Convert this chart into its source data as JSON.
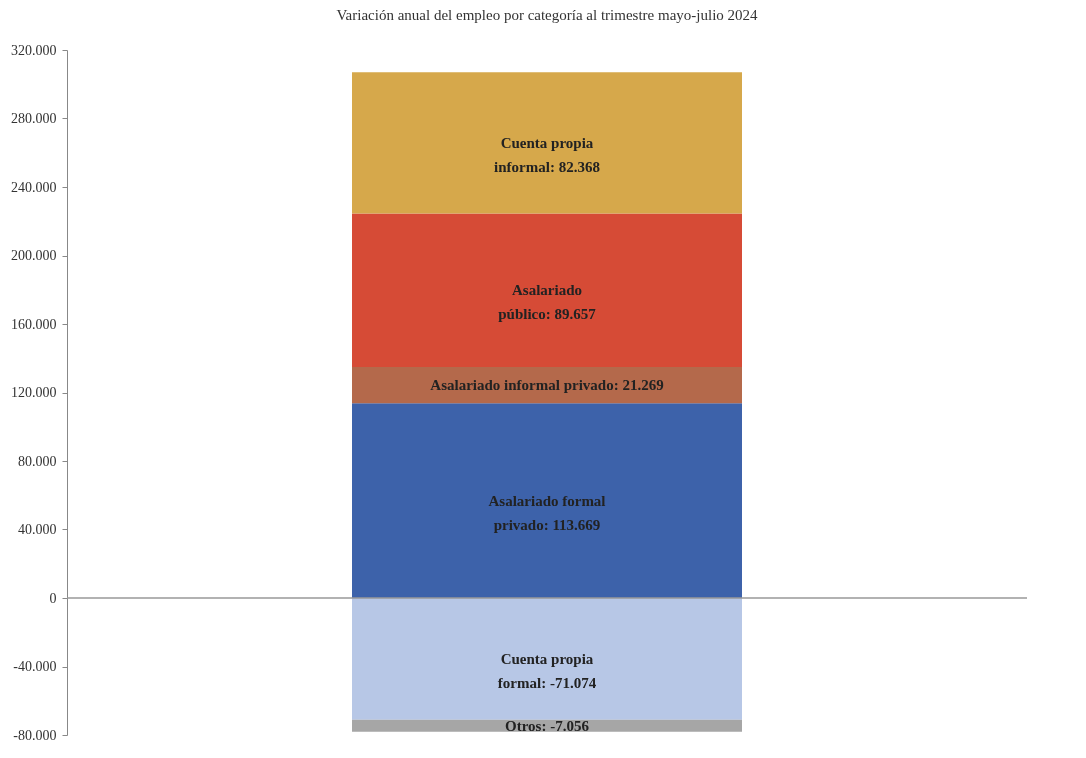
{
  "chart_data": {
    "type": "bar",
    "title": "Variación anual del empleo por categoría al trimestre mayo-julio 2024",
    "categories": [
      null
    ],
    "stacked": true,
    "series": [
      {
        "color": "#3d62aa",
        "values": [
          113669
        ],
        "value_labels": [
          "Asalariado formal privado: 113.669"
        ]
      },
      {
        "color": "#b4694b",
        "values": [
          21269
        ],
        "value_labels": [
          "Asalariado informal privado: 21.269"
        ]
      },
      {
        "color": "#d64b36",
        "values": [
          89657
        ],
        "value_labels": [
          "Asalariado público: 89.657"
        ]
      },
      {
        "color": "#d6a84b",
        "values": [
          82368
        ],
        "value_labels": [
          "Cuenta propia informal: 82.368"
        ]
      },
      {
        "color": "#b7c7e6",
        "values": [
          -71074
        ],
        "value_labels": [
          "Cuenta propia formal: -71.074"
        ]
      },
      {
        "color": "#a6a6a6",
        "values": [
          -7056
        ],
        "value_labels": [
          "Otros: -7.056"
        ]
      }
    ],
    "ylim": [
      -80000,
      320000
    ],
    "yticks": [
      {
        "value": -80000,
        "label": "-80.000"
      },
      {
        "value": -40000,
        "label": "-40.000"
      },
      0,
      {
        "value": 40000,
        "label": "40.000"
      },
      {
        "value": 80000,
        "label": "80.000"
      },
      {
        "value": 120000,
        "label": "120.000"
      },
      {
        "value": 160000,
        "label": "160.000"
      },
      {
        "value": 200000,
        "label": "200.000"
      },
      {
        "value": 240000,
        "label": "240.000"
      },
      {
        "value": 280000,
        "label": "280.000"
      },
      {
        "value": 320000,
        "label": "320.000"
      }
    ]
  }
}
